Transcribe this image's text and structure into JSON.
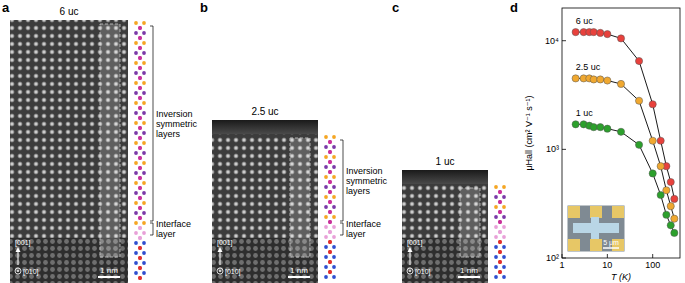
{
  "panels": [
    {
      "label": "a",
      "title": "6 uc",
      "annotations": [
        "Inversion symmetric layers",
        "Interface layer"
      ],
      "axes": [
        "[001]",
        "[010]"
      ],
      "scale_bar": "1 nm"
    },
    {
      "label": "b",
      "title": "2.5 uc",
      "annotations": [
        "Inversion symmetric layers",
        "Interface layer"
      ],
      "axes": [
        "[001]",
        "[010]"
      ],
      "scale_bar": "1 nm"
    },
    {
      "label": "c",
      "title": "1 uc",
      "annotations": [],
      "axes": [
        "[001]",
        "[010]"
      ],
      "scale_bar": "1 nm"
    }
  ],
  "chart_data": {
    "type": "scatter",
    "label": "d",
    "xlabel": "T (K)",
    "ylabel": "μHall (cm² V⁻¹ s⁻¹)",
    "log": true,
    "marker": "circle",
    "line_style": "solid",
    "xlim": [
      1,
      400
    ],
    "ylim": [
      100,
      20000
    ],
    "xticks": [
      1,
      10,
      100
    ],
    "yticks": [
      {
        "value": 100,
        "label": "10²"
      },
      {
        "value": 1000,
        "label": "10³"
      },
      {
        "value": 10000,
        "label": "10⁴"
      }
    ],
    "x": [
      2,
      3,
      4,
      5,
      7,
      10,
      20,
      50,
      100,
      150,
      200,
      250,
      300
    ],
    "series": [
      {
        "name": "6 uc",
        "color": "#e8413c",
        "values": [
          12000,
          12000,
          12000,
          12000,
          11800,
          11500,
          10500,
          6500,
          2600,
          1200,
          700,
          500,
          350
        ]
      },
      {
        "name": "2.5 uc",
        "color": "#f0a830",
        "values": [
          4500,
          4500,
          4500,
          4400,
          4400,
          4300,
          4000,
          2800,
          1200,
          700,
          420,
          300,
          230
        ]
      },
      {
        "name": "1 uc",
        "color": "#2ca02c",
        "values": [
          1700,
          1700,
          1650,
          1600,
          1600,
          1550,
          1450,
          1100,
          600,
          380,
          250,
          200,
          170
        ]
      }
    ],
    "inset_scale_bar": "5 μm"
  }
}
